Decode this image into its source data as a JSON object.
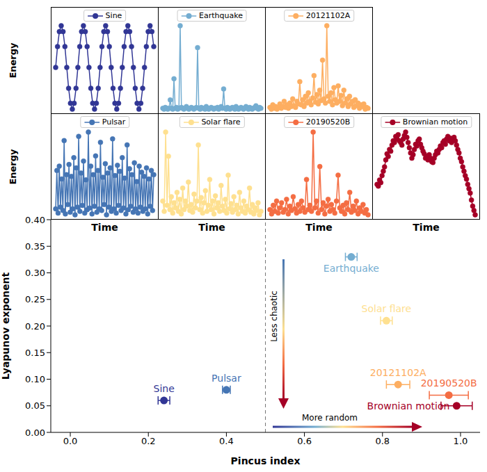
{
  "chart_data": [
    {
      "type": "line",
      "ylabel": "Energy",
      "tick_labels": false,
      "legend": "upper center",
      "marker": "circle",
      "line_style": "solid",
      "series": [
        {
          "name": "Sine",
          "color": "#313695",
          "values": [
            0.5,
            0.75,
            0.93,
            1,
            0.93,
            0.75,
            0.5,
            0.25,
            0.07,
            0,
            0.07,
            0.25,
            0.5,
            0.75,
            0.93,
            1,
            0.93,
            0.75,
            0.5,
            0.25,
            0.07,
            0,
            0.07,
            0.25,
            0.5,
            0.75,
            0.93,
            1,
            0.93,
            0.75,
            0.5,
            0.25,
            0.07,
            0,
            0.07,
            0.25,
            0.5,
            0.75,
            0.93,
            1,
            0.93,
            0.75,
            0.5,
            0.25,
            0.07,
            0,
            0.07,
            0.25,
            0.5,
            0.75,
            0.93,
            1,
            0.93,
            0.75
          ]
        }
      ]
    },
    {
      "type": "line",
      "tick_labels": false,
      "legend": "upper center",
      "marker": "circle",
      "line_style": "solid",
      "series": [
        {
          "name": "Earthquake",
          "color": "#74add1",
          "values": [
            0.02,
            0.01,
            0.03,
            0.02,
            0.01,
            0.02,
            0.12,
            0.02,
            0.01,
            0.37,
            0.02,
            0.03,
            0.01,
            0.02,
            1.0,
            0.03,
            0.02,
            0.01,
            0.02,
            0.04,
            0.02,
            0.01,
            0.02,
            0.03,
            0.02,
            0.01,
            0.02,
            0.03,
            0.74,
            0.02,
            0.01,
            0.03,
            0.02,
            0.02,
            0.01,
            0.04,
            0.02,
            0.01,
            0.02,
            0.03,
            0.02,
            0.01,
            0.02,
            0.02,
            0.03,
            0.01,
            0.02,
            0.04,
            0.02,
            0.25,
            0.02,
            0.01,
            0.03,
            0.02,
            0.01,
            0.02,
            0.03,
            0.02,
            0.01,
            0.04,
            0.02,
            0.01,
            0.02,
            0.03,
            0.02,
            0.01,
            0.02,
            0.04,
            0.02,
            0.01,
            0.03,
            0.02,
            0.01,
            0.02,
            0.03,
            0.05,
            0.02,
            0.01,
            0.03,
            0.02
          ]
        }
      ]
    },
    {
      "type": "line",
      "tick_labels": false,
      "legend": "upper center",
      "marker": "circle",
      "line_style": "solid",
      "series": [
        {
          "name": "20121102A",
          "color": "#fdae61",
          "values": [
            0.05,
            0.03,
            0.08,
            0.04,
            0.06,
            0.03,
            0.05,
            0.09,
            0.04,
            0.06,
            0.12,
            0.05,
            0.08,
            0.04,
            0.1,
            0.06,
            0.15,
            0.07,
            0.05,
            0.12,
            0.09,
            0.35,
            0.08,
            0.14,
            0.06,
            0.18,
            0.1,
            0.22,
            0.12,
            0.08,
            0.16,
            0.42,
            0.11,
            0.2,
            0.09,
            0.25,
            0.13,
            0.6,
            0.15,
            0.1,
            1.0,
            0.18,
            0.12,
            0.22,
            0.08,
            0.28,
            0.14,
            0.1,
            0.3,
            0.12,
            0.19,
            0.07,
            0.25,
            0.1,
            0.15,
            0.06,
            0.18,
            0.09,
            0.12,
            0.05,
            0.14,
            0.07,
            0.1,
            0.04,
            0.08,
            0.06,
            0.09,
            0.03,
            0.05,
            0.04
          ]
        }
      ]
    },
    {
      "type": "line",
      "ylabel": "Energy",
      "xlabel": "Time",
      "tick_labels": false,
      "legend": "upper center",
      "marker": "circle",
      "line_style": "solid",
      "series": [
        {
          "name": "Pulsar",
          "color": "#4575b4",
          "values": [
            0.1,
            0.55,
            0.05,
            0.6,
            0.12,
            0.45,
            0.08,
            0.9,
            0.04,
            0.5,
            0.15,
            0.62,
            0.06,
            0.48,
            0.1,
            0.7,
            0.03,
            0.58,
            0.12,
            0.95,
            0.07,
            0.52,
            0.14,
            0.66,
            0.05,
            0.44,
            0.09,
            1.0,
            0.11,
            0.6,
            0.04,
            0.5,
            0.13,
            0.72,
            0.06,
            0.55,
            0.1,
            0.88,
            0.08,
            0.47,
            0.15,
            0.63,
            0.03,
            0.52,
            0.12,
            0.58,
            0.07,
            0.92,
            0.1,
            0.49,
            0.05,
            0.61,
            0.14,
            0.54,
            0.08,
            0.7,
            0.11,
            0.46,
            0.04,
            0.85,
            0.09,
            0.57,
            0.13,
            0.5,
            0.06,
            0.64,
            0.1,
            0.42,
            0.05,
            0.6,
            0.12,
            0.53,
            0.07,
            0.48,
            0.1,
            0.58,
            0.04,
            0.45,
            0.13,
            0.55,
            0.08,
            0.5
          ]
        }
      ]
    },
    {
      "type": "line",
      "xlabel": "Time",
      "tick_labels": false,
      "legend": "upper center",
      "marker": "circle",
      "line_style": "solid",
      "series": [
        {
          "name": "Solar flare",
          "color": "#fee090",
          "values": [
            0.2,
            0.08,
            1.0,
            0.15,
            0.72,
            0.1,
            0.25,
            0.06,
            0.18,
            0.12,
            0.3,
            0.08,
            0.22,
            0.05,
            0.35,
            0.1,
            0.2,
            0.14,
            0.42,
            0.09,
            0.16,
            0.07,
            0.28,
            0.12,
            0.2,
            0.85,
            0.1,
            0.24,
            0.06,
            0.18,
            0.32,
            0.08,
            0.15,
            0.45,
            0.1,
            0.2,
            0.05,
            0.26,
            0.12,
            0.18,
            0.08,
            0.38,
            0.14,
            0.09,
            0.22,
            0.06,
            0.5,
            0.11,
            0.17,
            0.07,
            0.25,
            0.1,
            0.15,
            0.05,
            0.3,
            0.12,
            0.08,
            0.2,
            0.06,
            0.14,
            0.1,
            0.35,
            0.07,
            0.16,
            0.05,
            0.12,
            0.09,
            0.18,
            0.04,
            0.08
          ]
        }
      ]
    },
    {
      "type": "line",
      "xlabel": "Time",
      "tick_labels": false,
      "legend": "upper center",
      "marker": "circle",
      "line_style": "solid",
      "series": [
        {
          "name": "20190520B",
          "color": "#f46d43",
          "values": [
            0.1,
            0.05,
            0.15,
            0.08,
            0.2,
            0.06,
            0.12,
            0.18,
            0.07,
            0.1,
            0.22,
            0.05,
            0.14,
            0.09,
            0.25,
            0.11,
            0.06,
            0.16,
            0.08,
            0.2,
            0.12,
            0.07,
            0.45,
            0.1,
            0.15,
            0.08,
            1.0,
            0.12,
            0.2,
            0.06,
            0.6,
            0.1,
            0.18,
            0.05,
            0.14,
            0.22,
            0.08,
            0.16,
            0.1,
            0.06,
            0.2,
            0.5,
            0.12,
            0.08,
            0.15,
            0.05,
            0.18,
            0.1,
            0.3,
            0.07,
            0.14,
            0.09,
            0.2,
            0.05,
            0.12,
            0.08,
            0.16,
            0.06,
            0.1,
            0.04
          ]
        }
      ]
    },
    {
      "type": "line",
      "xlabel": "Time",
      "tick_labels": false,
      "legend": "upper center",
      "marker": "circle",
      "line_style": "solid",
      "series": [
        {
          "name": "Brownian motion",
          "color": "#a50026",
          "values": [
            0.4,
            0.38,
            0.45,
            0.42,
            0.5,
            0.55,
            0.6,
            0.68,
            0.75,
            0.72,
            0.8,
            0.78,
            0.85,
            0.9,
            0.88,
            0.95,
            0.92,
            0.97,
            0.9,
            0.88,
            0.85,
            0.92,
            0.96,
            1.0,
            0.94,
            0.88,
            0.82,
            0.76,
            0.7,
            0.74,
            0.8,
            0.86,
            0.84,
            0.9,
            0.92,
            0.86,
            0.82,
            0.78,
            0.75,
            0.7,
            0.72,
            0.68,
            0.74,
            0.7,
            0.66,
            0.65,
            0.7,
            0.74,
            0.78,
            0.76,
            0.8,
            0.84,
            0.82,
            0.88,
            0.9,
            0.86,
            0.92,
            0.95,
            0.9,
            0.93,
            0.88,
            0.92,
            0.94,
            0.9,
            0.85,
            0.8,
            0.76,
            0.7,
            0.66,
            0.6,
            0.55,
            0.5,
            0.46,
            0.4,
            0.35,
            0.3,
            0.22,
            0.15,
            0.1,
            0.05
          ]
        }
      ]
    },
    {
      "type": "scatter",
      "xlabel": "Pincus index",
      "ylabel": "Lyapunov exponent",
      "marker": "circle",
      "xlim": [
        -0.05,
        1.05
      ],
      "xticks": [
        {
          "value": 0,
          "label": "0.0"
        },
        0.2,
        0.4,
        0.6,
        0.8,
        {
          "value": 1,
          "label": "1.0"
        }
      ],
      "ylim": [
        0,
        0.4
      ],
      "yticks": [
        {
          "value": 0,
          "label": "0.00"
        },
        0.05,
        {
          "value": 0.1,
          "label": "0.10"
        },
        0.15,
        {
          "value": 0.2,
          "label": "0.20"
        },
        0.25,
        {
          "value": 0.3,
          "label": "0.30"
        },
        0.35,
        {
          "value": 0.4,
          "label": "0.40"
        }
      ],
      "vline": 0.5,
      "annotations": [
        "Less chaotic",
        "More random"
      ],
      "series": [
        {
          "name": "Sine",
          "color": "#313695",
          "x": 0.24,
          "y": 0.06,
          "xerr": 0.015
        },
        {
          "name": "Pulsar",
          "color": "#4575b4",
          "x": 0.4,
          "y": 0.08,
          "xerr": 0.01
        },
        {
          "name": "Earthquake",
          "color": "#74add1",
          "x": 0.72,
          "y": 0.33,
          "xerr": 0.015
        },
        {
          "name": "Solar flare",
          "color": "#fee090",
          "x": 0.81,
          "y": 0.21,
          "xerr": 0.015
        },
        {
          "name": "20121102A",
          "color": "#fdae61",
          "x": 0.84,
          "y": 0.09,
          "xerr": 0.03
        },
        {
          "name": "20190520B",
          "color": "#f46d43",
          "x": 0.97,
          "y": 0.07,
          "xerr": 0.05
        },
        {
          "name": "Brownian motion",
          "color": "#a50026",
          "x": 0.99,
          "y": 0.05,
          "xerr": 0.04
        }
      ]
    }
  ]
}
